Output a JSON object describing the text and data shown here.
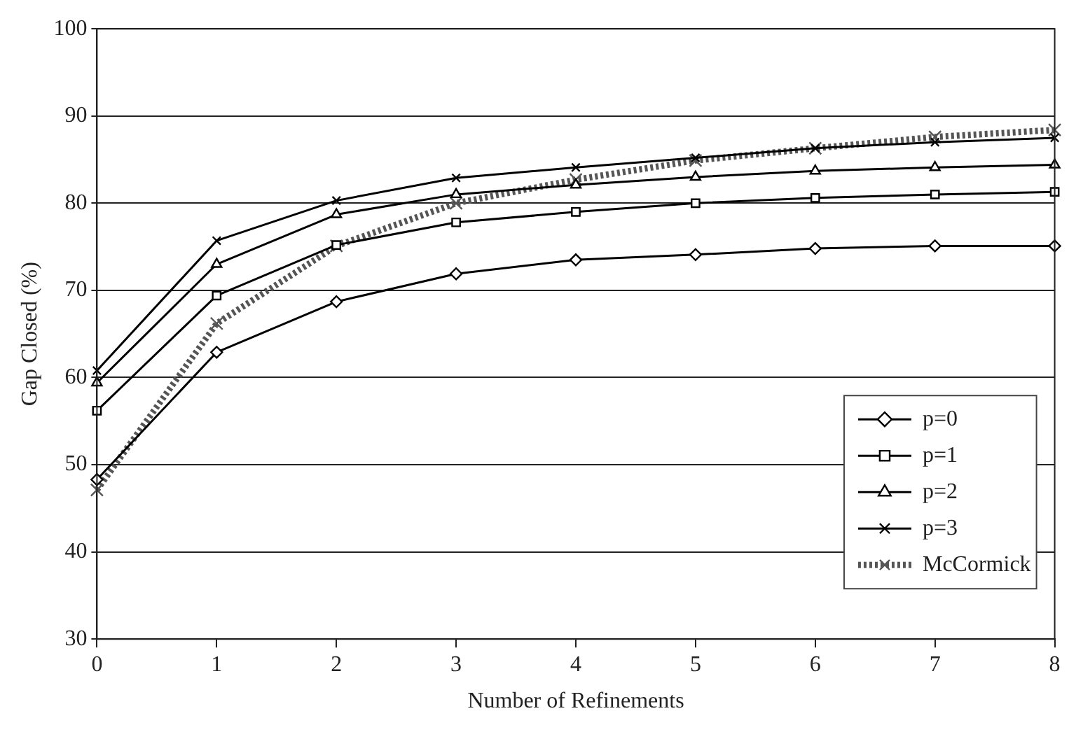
{
  "chart_data": {
    "type": "line",
    "xlabel": "Number of Refinements",
    "ylabel": "Gap Closed (%)",
    "x": [
      0,
      1,
      2,
      3,
      4,
      5,
      6,
      7,
      8
    ],
    "xlim": [
      0,
      8
    ],
    "xticks": [
      0,
      1,
      2,
      3,
      4,
      5,
      6,
      7,
      8
    ],
    "ylim": [
      30,
      100
    ],
    "yticks": [
      30,
      40,
      50,
      60,
      70,
      80,
      90,
      100
    ],
    "grid": "y",
    "legend": "bottom right",
    "line_style": "solid",
    "series": [
      {
        "name": "p=0",
        "color": "#000000",
        "marker": "diamond",
        "values": [
          48.3,
          62.9,
          68.7,
          71.9,
          73.5,
          74.1,
          74.8,
          75.1,
          75.1
        ]
      },
      {
        "name": "p=1",
        "color": "#000000",
        "marker": "square",
        "values": [
          56.2,
          69.4,
          75.2,
          77.8,
          79.0,
          80.0,
          80.6,
          81.0,
          81.3
        ]
      },
      {
        "name": "p=2",
        "color": "#000000",
        "marker": "triangle",
        "values": [
          59.4,
          73.0,
          78.7,
          81.0,
          82.1,
          83.0,
          83.7,
          84.1,
          84.4
        ]
      },
      {
        "name": "p=3",
        "color": "#000000",
        "marker": "cross",
        "values": [
          60.8,
          75.7,
          80.3,
          82.9,
          84.1,
          85.2,
          86.3,
          87.0,
          87.5
        ]
      },
      {
        "name": "McCormick",
        "color": "#555555",
        "marker": "cross",
        "line_style": "dotted",
        "values": [
          47.1,
          66.2,
          75.1,
          80.0,
          82.7,
          84.9,
          86.3,
          87.6,
          88.4
        ]
      }
    ]
  }
}
